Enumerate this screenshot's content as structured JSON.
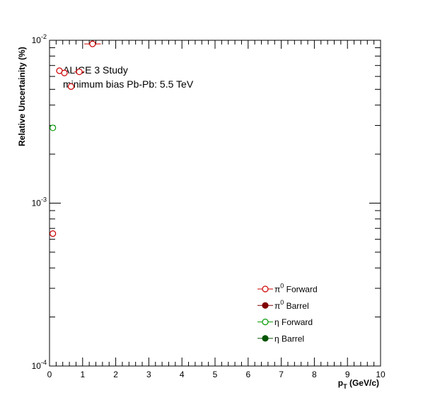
{
  "chart_data": {
    "type": "scatter",
    "title": "",
    "xlabel": "p_T (GeV/c)",
    "ylabel": "Relative Uncertainity (%)",
    "xlim": [
      0,
      10
    ],
    "ylim": [
      0.0001,
      0.01
    ],
    "y_scale": "log",
    "x_ticks": [
      "0",
      "1",
      "2",
      "3",
      "4",
      "5",
      "6",
      "7",
      "8",
      "9",
      "10"
    ],
    "y_ticks": [
      {
        "value": 0.01,
        "base": "10",
        "exp": "-2"
      },
      {
        "value": 0.001,
        "base": "10",
        "exp": "-3"
      },
      {
        "value": 0.0001,
        "base": "10",
        "exp": "-4"
      }
    ],
    "grid": false,
    "legend_position": "bottom-right",
    "annotations": [
      "ALICE 3 Study",
      "minimum bias Pb-Pb: 5.5 TeV"
    ],
    "series": [
      {
        "name": "π⁰ Forward",
        "label_main": "π",
        "label_sup": "0",
        "label_rest": " Forward",
        "color": "#cc0000",
        "marker": "open-circle",
        "points": [
          {
            "x": 0.1,
            "y": 0.00065,
            "xerr": 0.05
          },
          {
            "x": 0.3,
            "y": 0.0065,
            "xerr": 0.1
          },
          {
            "x": 0.45,
            "y": 0.0063,
            "xerr": 0.1
          },
          {
            "x": 0.65,
            "y": 0.0052,
            "xerr": 0.1
          },
          {
            "x": 0.9,
            "y": 0.0064,
            "xerr": 0.15
          },
          {
            "x": 1.3,
            "y": 0.0095,
            "xerr": 0.25
          }
        ]
      },
      {
        "name": "π⁰ Barrel",
        "label_main": "π",
        "label_sup": "0",
        "label_rest": " Barrel",
        "color": "#800000",
        "marker": "filled-circle",
        "points": []
      },
      {
        "name": "η Forward",
        "label_main": "η",
        "label_sup": "",
        "label_rest": " Forward",
        "color": "#009900",
        "marker": "open-circle",
        "points": [
          {
            "x": 0.1,
            "y": 0.0029,
            "xerr": 0.05
          }
        ]
      },
      {
        "name": "η Barrel",
        "label_main": "η",
        "label_sup": "",
        "label_rest": " Barrel",
        "color": "#005500",
        "marker": "filled-circle",
        "points": []
      }
    ]
  }
}
